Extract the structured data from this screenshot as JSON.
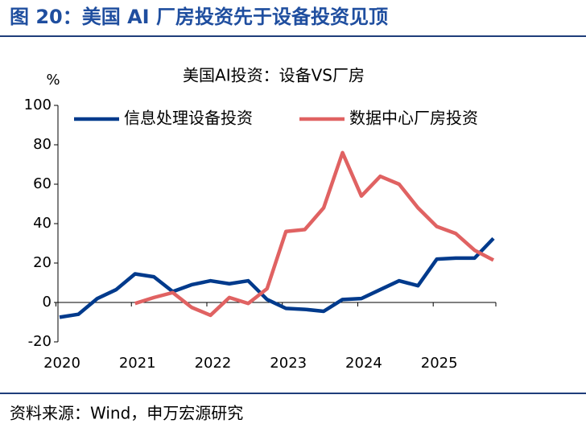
{
  "header": {
    "title": "图 20：美国 AI 厂房投资先于设备投资见顶"
  },
  "footer": {
    "source": "资料来源：Wind，申万宏源研究"
  },
  "chart_data": {
    "type": "line",
    "title": "美国AI投资：设备VS厂房",
    "y_label": "%",
    "categories": [
      "2020",
      null,
      null,
      null,
      "2021",
      null,
      null,
      null,
      "2022",
      null,
      null,
      null,
      "2023",
      null,
      null,
      null,
      "2024",
      null,
      null,
      null,
      "2025",
      null,
      null,
      null
    ],
    "series": [
      {
        "name": "信息处理设备投资",
        "color": "#003a8c",
        "values": [
          -7.5,
          -6,
          2,
          6.5,
          14.5,
          13,
          5.5,
          9,
          11,
          9.5,
          11,
          1.5,
          -3,
          -3.5,
          -4.5,
          1.5,
          2,
          6.5,
          11,
          8.5,
          22,
          22.5,
          22.5,
          32.5
        ]
      },
      {
        "name": "数据中心厂房投资",
        "color": "#e06262",
        "values": [
          null,
          null,
          null,
          null,
          -0.5,
          2.5,
          5,
          -2.5,
          -6.5,
          2.5,
          -0.5,
          7,
          36,
          37,
          48,
          76,
          54,
          64,
          60,
          48,
          38.5,
          35,
          26.5,
          21.5
        ]
      }
    ],
    "ylim": [
      -20,
      100
    ],
    "yticks": [
      -20,
      0,
      20,
      40,
      60,
      80,
      100
    ],
    "grid": false
  }
}
